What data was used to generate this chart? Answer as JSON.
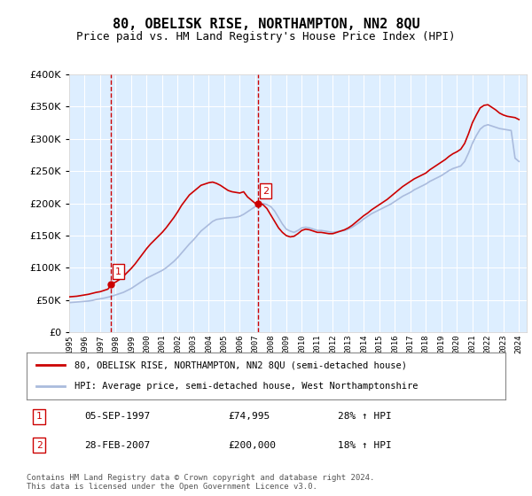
{
  "title": "80, OBELISK RISE, NORTHAMPTON, NN2 8QU",
  "subtitle": "Price paid vs. HM Land Registry's House Price Index (HPI)",
  "ylabel_ticks": [
    "£0",
    "£50K",
    "£100K",
    "£150K",
    "£200K",
    "£250K",
    "£300K",
    "£350K",
    "£400K"
  ],
  "ylim": [
    0,
    400000
  ],
  "yticks": [
    0,
    50000,
    100000,
    150000,
    200000,
    250000,
    300000,
    350000,
    400000
  ],
  "xmin": 1995.0,
  "xmax": 2024.5,
  "background_color": "#ddeeff",
  "plot_bg": "#ddeeff",
  "grid_color": "#ffffff",
  "line1_color": "#cc0000",
  "line2_color": "#aabbdd",
  "legend1": "80, OBELISK RISE, NORTHAMPTON, NN2 8QU (semi-detached house)",
  "legend2": "HPI: Average price, semi-detached house, West Northamptonshire",
  "transaction1_date": "05-SEP-1997",
  "transaction1_price": "£74,995",
  "transaction1_hpi": "28% ↑ HPI",
  "transaction1_x": 1997.68,
  "transaction1_y": 74995,
  "transaction2_date": "28-FEB-2007",
  "transaction2_price": "£200,000",
  "transaction2_hpi": "18% ↑ HPI",
  "transaction2_x": 2007.16,
  "transaction2_y": 200000,
  "footnote": "Contains HM Land Registry data © Crown copyright and database right 2024.\nThis data is licensed under the Open Government Licence v3.0.",
  "hpi_data_x": [
    1995.0,
    1995.25,
    1995.5,
    1995.75,
    1996.0,
    1996.25,
    1996.5,
    1996.75,
    1997.0,
    1997.25,
    1997.5,
    1997.75,
    1998.0,
    1998.25,
    1998.5,
    1998.75,
    1999.0,
    1999.25,
    1999.5,
    1999.75,
    2000.0,
    2000.25,
    2000.5,
    2000.75,
    2001.0,
    2001.25,
    2001.5,
    2001.75,
    2002.0,
    2002.25,
    2002.5,
    2002.75,
    2003.0,
    2003.25,
    2003.5,
    2003.75,
    2004.0,
    2004.25,
    2004.5,
    2004.75,
    2005.0,
    2005.25,
    2005.5,
    2005.75,
    2006.0,
    2006.25,
    2006.5,
    2006.75,
    2007.0,
    2007.25,
    2007.5,
    2007.75,
    2008.0,
    2008.25,
    2008.5,
    2008.75,
    2009.0,
    2009.25,
    2009.5,
    2009.75,
    2010.0,
    2010.25,
    2010.5,
    2010.75,
    2011.0,
    2011.25,
    2011.5,
    2011.75,
    2012.0,
    2012.25,
    2012.5,
    2012.75,
    2013.0,
    2013.25,
    2013.5,
    2013.75,
    2014.0,
    2014.25,
    2014.5,
    2014.75,
    2015.0,
    2015.25,
    2015.5,
    2015.75,
    2016.0,
    2016.25,
    2016.5,
    2016.75,
    2017.0,
    2017.25,
    2017.5,
    2017.75,
    2018.0,
    2018.25,
    2018.5,
    2018.75,
    2019.0,
    2019.25,
    2019.5,
    2019.75,
    2020.0,
    2020.25,
    2020.5,
    2020.75,
    2021.0,
    2021.25,
    2021.5,
    2021.75,
    2022.0,
    2022.25,
    2022.5,
    2022.75,
    2023.0,
    2023.25,
    2023.5,
    2023.75,
    2024.0
  ],
  "hpi_data_y": [
    46000,
    46500,
    47000,
    47500,
    48000,
    48500,
    49500,
    51000,
    52000,
    53000,
    54500,
    56000,
    58000,
    60000,
    62000,
    65000,
    68000,
    72000,
    76000,
    80000,
    84000,
    87000,
    90000,
    93000,
    96000,
    100000,
    105000,
    110000,
    116000,
    123000,
    130000,
    137000,
    143000,
    150000,
    157000,
    162000,
    167000,
    172000,
    175000,
    176000,
    177000,
    177500,
    178000,
    178500,
    180000,
    183000,
    187000,
    191000,
    195000,
    198000,
    200000,
    198000,
    195000,
    188000,
    178000,
    168000,
    160000,
    157000,
    155000,
    158000,
    162000,
    163000,
    162000,
    160000,
    158000,
    158000,
    157000,
    156000,
    155000,
    156000,
    157000,
    158000,
    160000,
    163000,
    167000,
    171000,
    176000,
    180000,
    184000,
    187000,
    190000,
    193000,
    196000,
    199000,
    203000,
    207000,
    211000,
    214000,
    217000,
    221000,
    224000,
    227000,
    230000,
    234000,
    237000,
    240000,
    243000,
    247000,
    251000,
    254000,
    256000,
    258000,
    265000,
    278000,
    293000,
    305000,
    315000,
    320000,
    322000,
    320000,
    318000,
    316000,
    315000,
    314000,
    313000,
    270000,
    265000
  ],
  "price_data_x": [
    1995.0,
    1995.25,
    1995.5,
    1995.75,
    1996.0,
    1996.25,
    1996.5,
    1996.75,
    1997.0,
    1997.25,
    1997.5,
    1997.75,
    1998.0,
    1998.25,
    1998.5,
    1998.75,
    1999.0,
    1999.25,
    1999.5,
    1999.75,
    2000.0,
    2000.25,
    2000.5,
    2000.75,
    2001.0,
    2001.25,
    2001.5,
    2001.75,
    2002.0,
    2002.25,
    2002.5,
    2002.75,
    2003.0,
    2003.25,
    2003.5,
    2003.75,
    2004.0,
    2004.25,
    2004.5,
    2004.75,
    2005.0,
    2005.25,
    2005.5,
    2005.75,
    2006.0,
    2006.25,
    2006.5,
    2006.75,
    2007.0,
    2007.25,
    2007.5,
    2007.75,
    2008.0,
    2008.25,
    2008.5,
    2008.75,
    2009.0,
    2009.25,
    2009.5,
    2009.75,
    2010.0,
    2010.25,
    2010.5,
    2010.75,
    2011.0,
    2011.25,
    2011.5,
    2011.75,
    2012.0,
    2012.25,
    2012.5,
    2012.75,
    2013.0,
    2013.25,
    2013.5,
    2013.75,
    2014.0,
    2014.25,
    2014.5,
    2014.75,
    2015.0,
    2015.25,
    2015.5,
    2015.75,
    2016.0,
    2016.25,
    2016.5,
    2016.75,
    2017.0,
    2017.25,
    2017.5,
    2017.75,
    2018.0,
    2018.25,
    2018.5,
    2018.75,
    2019.0,
    2019.25,
    2019.5,
    2019.75,
    2020.0,
    2020.25,
    2020.5,
    2020.75,
    2021.0,
    2021.25,
    2021.5,
    2021.75,
    2022.0,
    2022.25,
    2022.5,
    2022.75,
    2023.0,
    2023.25,
    2023.5,
    2023.75,
    2024.0
  ],
  "price_data_y": [
    55000,
    55500,
    56000,
    57000,
    58000,
    59000,
    60500,
    62000,
    63000,
    65000,
    67000,
    74995,
    78000,
    82000,
    87000,
    93000,
    99000,
    106000,
    114000,
    122000,
    130000,
    137000,
    143000,
    149000,
    155000,
    162000,
    170000,
    178000,
    187000,
    197000,
    205000,
    213000,
    218000,
    223000,
    228000,
    230000,
    232000,
    233000,
    231000,
    228000,
    224000,
    220000,
    218000,
    217000,
    216000,
    218000,
    210000,
    205000,
    200000,
    200000,
    198000,
    192000,
    182000,
    172000,
    162000,
    155000,
    150000,
    148000,
    149000,
    153000,
    158000,
    160000,
    159000,
    157000,
    155000,
    155000,
    154000,
    153000,
    153000,
    155000,
    157000,
    159000,
    162000,
    166000,
    171000,
    176000,
    181000,
    185000,
    190000,
    194000,
    198000,
    202000,
    206000,
    211000,
    216000,
    221000,
    226000,
    230000,
    234000,
    238000,
    241000,
    244000,
    247000,
    252000,
    256000,
    260000,
    264000,
    268000,
    273000,
    277000,
    280000,
    284000,
    293000,
    308000,
    325000,
    337000,
    348000,
    352000,
    353000,
    349000,
    345000,
    340000,
    337000,
    335000,
    334000,
    333000,
    330000
  ]
}
